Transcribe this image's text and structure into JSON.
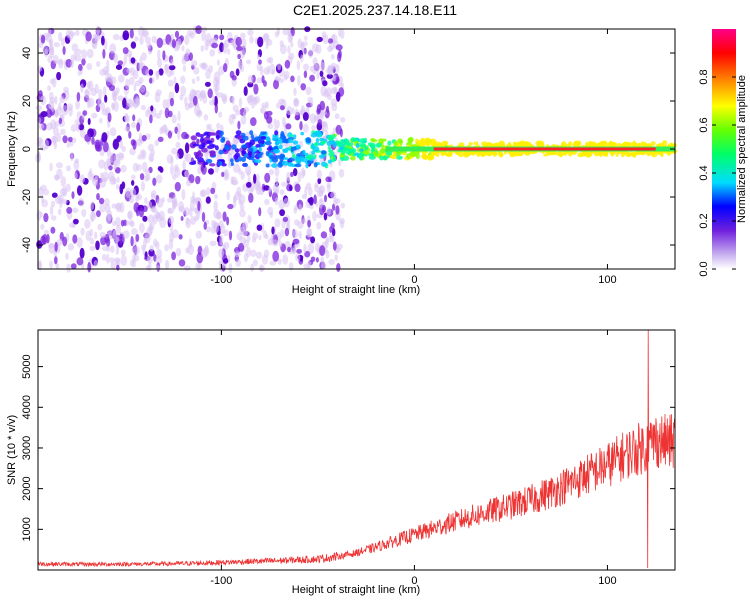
{
  "title": "C2E1.2025.237.14.18.E11",
  "colors": {
    "snr_line": "#ee3333",
    "spectrum_weak": "#d8c2f2",
    "spectrum_mid": "#7a22dd",
    "spectrum_strong": "#5500cc"
  },
  "chart_data": [
    {
      "type": "heatmap",
      "title": "",
      "xlabel": "Height of straight line (km)",
      "ylabel": "Frequency (Hz)",
      "xlim": [
        -195,
        135
      ],
      "ylim": [
        -50,
        50
      ],
      "xticks": [
        -100,
        0,
        100
      ],
      "yticks": [
        -40,
        -20,
        0,
        20,
        40
      ],
      "tick_labels_x": [
        "-100",
        "0",
        "100"
      ],
      "tick_labels_y": [
        "-40",
        "-20",
        "0",
        "20",
        "40"
      ],
      "colorbar": {
        "label": "Normalized spectral amplitude",
        "range": [
          0.0,
          1.0
        ],
        "ticks": [
          0.0,
          0.2,
          0.4,
          0.6,
          0.8
        ],
        "tick_labels": [
          "0.0",
          "0.2",
          "0.4",
          "0.6",
          "0.8"
        ],
        "colormap": "rainbow (white-purple-blue-cyan-green-yellow-red-magenta)"
      },
      "features": [
        {
          "region": "broadband noise",
          "x_range": [
            -195,
            -45
          ],
          "freq_range": [
            -50,
            50
          ],
          "amplitude": 0.05
        },
        {
          "region": "narrowband signal",
          "x_range": [
            -115,
            135
          ],
          "center_freq": 0,
          "peak_amplitude": 0.95
        }
      ],
      "grid": false
    },
    {
      "type": "line",
      "title": "",
      "xlabel": "Height of straight line (km)",
      "ylabel": "SNR (10 * v/v)",
      "xlim": [
        -195,
        135
      ],
      "ylim": [
        0,
        5900
      ],
      "xticks": [
        -100,
        0,
        100
      ],
      "yticks": [
        1000,
        2000,
        3000,
        4000,
        5000
      ],
      "tick_labels_x": [
        "-100",
        "0",
        "100"
      ],
      "tick_labels_y": [
        "1000",
        "2000",
        "3000",
        "4000",
        "5000"
      ],
      "series": [
        {
          "x": [
            -195,
            -170,
            -150,
            -130,
            -110,
            -90,
            -70,
            -50,
            -40,
            -30,
            -20,
            -10,
            0,
            10,
            20,
            30,
            40,
            50,
            60,
            70,
            80,
            90,
            100,
            110,
            120,
            125,
            130,
            135
          ],
          "y": [
            150,
            140,
            145,
            150,
            170,
            200,
            230,
            270,
            330,
            420,
            560,
            720,
            870,
            1020,
            1180,
            1320,
            1450,
            1580,
            1720,
            1900,
            2120,
            2350,
            2580,
            2850,
            3050,
            3200,
            3150,
            3150
          ]
        }
      ],
      "annotations": [
        {
          "x": 121,
          "y": 5900,
          "text": "",
          "kind": "spike max"
        },
        {
          "x": 121,
          "y": 50,
          "text": "",
          "kind": "spike min"
        }
      ],
      "grid": false
    }
  ]
}
